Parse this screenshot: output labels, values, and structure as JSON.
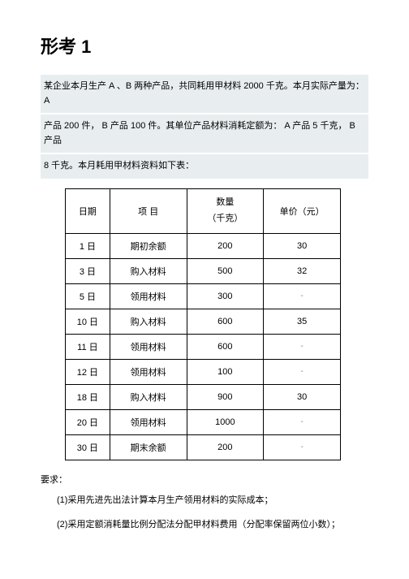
{
  "title": "形考 1",
  "description": {
    "line1": "某企业本月生产 A 、B 两种产品，共同耗用甲材料 2000 千克。本月实际产量为：  A",
    "line2": "产品 200 件， B 产品 100 件。其单位产品材料消耗定额为：  A 产品 5 千克， B 产品",
    "line3": "8 千克。本月耗用甲材料资料如下表："
  },
  "table": {
    "headers": {
      "date": "日期",
      "item": "项 目",
      "qty_line1": "数量",
      "qty_line2": "（千克）",
      "price": "单价（元）"
    },
    "rows": [
      {
        "date": "1 日",
        "item": "期初余额",
        "qty": "200",
        "price": "30"
      },
      {
        "date": "3 日",
        "item": "购入材料",
        "qty": "500",
        "price": "32"
      },
      {
        "date": "5 日",
        "item": "领用材料",
        "qty": "300",
        "price": "-"
      },
      {
        "date": "10 日",
        "item": "购入材料",
        "qty": "600",
        "price": "35"
      },
      {
        "date": "11 日",
        "item": "领用材料",
        "qty": "600",
        "price": "-"
      },
      {
        "date": "12 日",
        "item": "领用材料",
        "qty": "100",
        "price": "-"
      },
      {
        "date": "18 日",
        "item": "购入材料",
        "qty": "900",
        "price": "30"
      },
      {
        "date": "20 日",
        "item": "领用材料",
        "qty": "1000",
        "price": "-"
      },
      {
        "date": "30 日",
        "item": "期末余额",
        "qty": "200",
        "price": "-"
      }
    ]
  },
  "requirements": {
    "title": "要求：",
    "item1": "(1)采用先进先出法计算本月生产领用材料的实际成本；",
    "item2": "(2)采用定额消耗量比例分配法分配甲材料费用（分配率保留两位小数）；"
  }
}
